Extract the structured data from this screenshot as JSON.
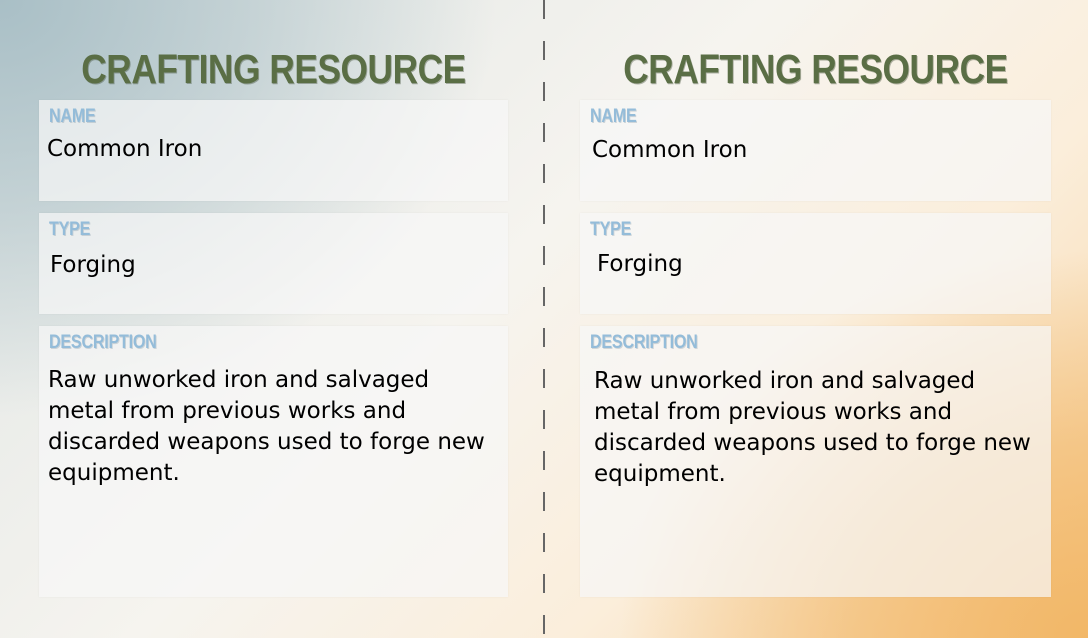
{
  "cards": [
    {
      "title": "CRAFTING RESOURCE",
      "name_label": "NAME",
      "name_value": "Common Iron",
      "type_label": "TYPE",
      "type_value": "Forging",
      "description_label": "DESCRIPTION",
      "description_value": "Raw unworked iron and salvaged metal from previous works and discarded weapons used to forge new equipment."
    },
    {
      "title": "CRAFTING RESOURCE",
      "name_label": "NAME",
      "name_value": "Common Iron",
      "type_label": "TYPE",
      "type_value": "Forging",
      "description_label": "DESCRIPTION",
      "description_value": "Raw unworked iron and salvaged metal from previous works and discarded weapons used to forge new equipment."
    }
  ],
  "colors": {
    "title": "#5a6e45",
    "field_label": "#94bcd9",
    "divider": "#666666"
  }
}
